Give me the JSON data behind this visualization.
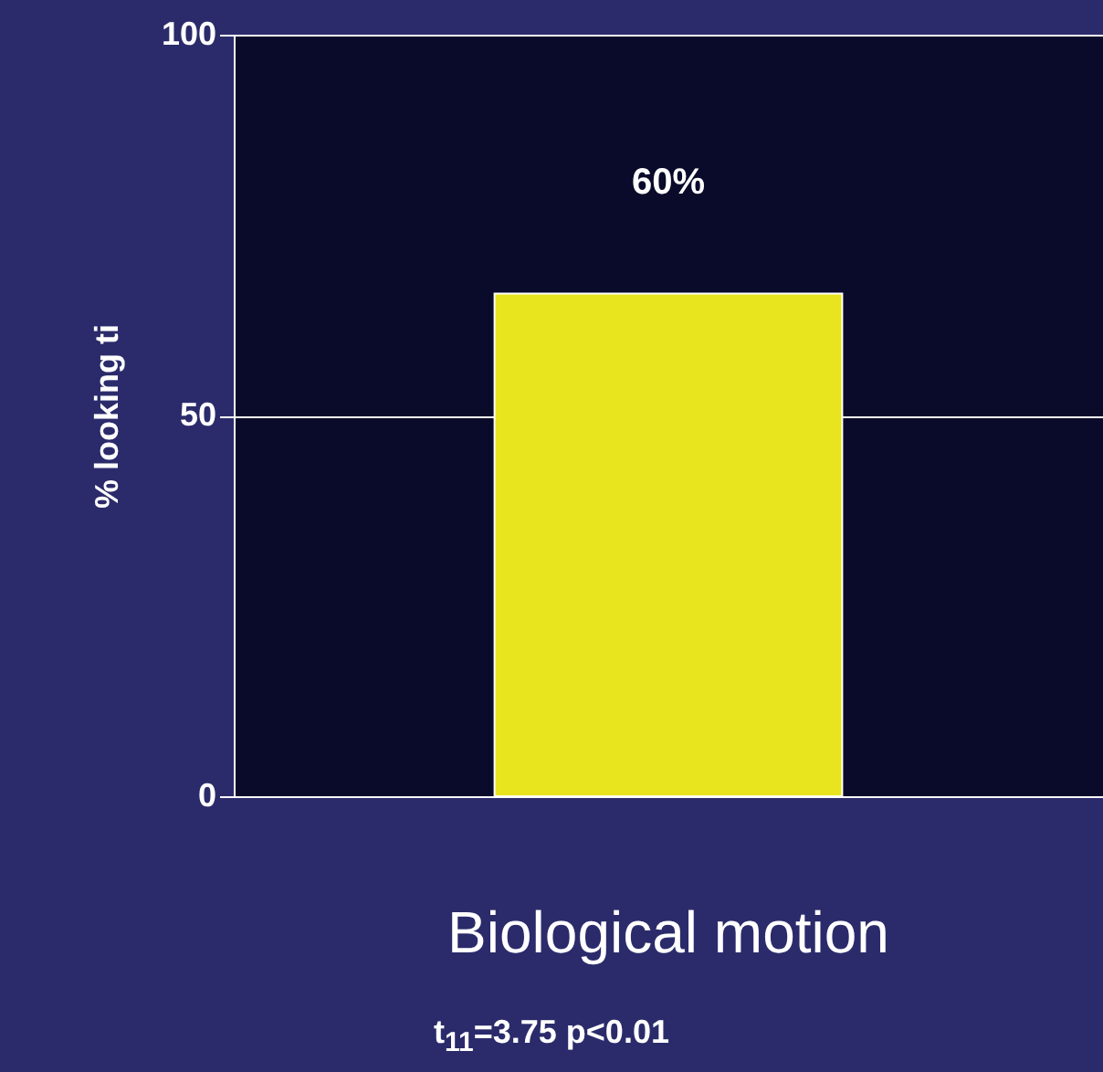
{
  "chart_data": {
    "type": "bar",
    "ylabel": "% looking ti",
    "categories": [
      "Biological motion"
    ],
    "values": [
      66
    ],
    "color": "#e8e41e",
    "ylim": [
      0,
      100
    ],
    "yticks": [
      0,
      50,
      100
    ],
    "grid": "y",
    "annotations": [
      "60%",
      "t$_{11}$=3.75   p<0.01"
    ]
  }
}
